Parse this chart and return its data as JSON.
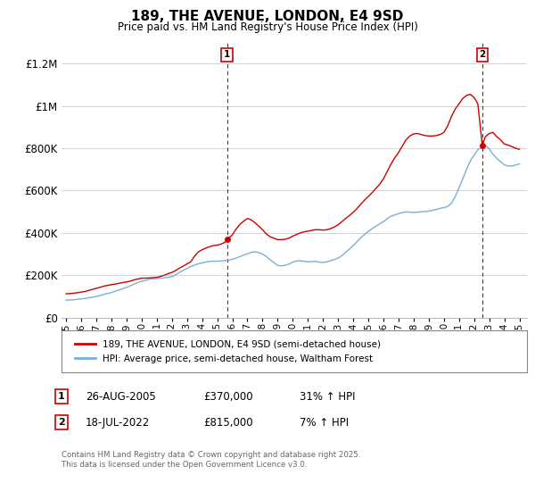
{
  "title": "189, THE AVENUE, LONDON, E4 9SD",
  "subtitle": "Price paid vs. HM Land Registry's House Price Index (HPI)",
  "ylabel_ticks": [
    "£0",
    "£200K",
    "£400K",
    "£600K",
    "£800K",
    "£1M",
    "£1.2M"
  ],
  "ytick_values": [
    0,
    200000,
    400000,
    600000,
    800000,
    1000000,
    1200000
  ],
  "ylim": [
    0,
    1300000
  ],
  "xlim_start": 1994.7,
  "xlim_end": 2025.5,
  "xticks": [
    1995,
    1996,
    1997,
    1998,
    1999,
    2000,
    2001,
    2002,
    2003,
    2004,
    2005,
    2006,
    2007,
    2008,
    2009,
    2010,
    2011,
    2012,
    2013,
    2014,
    2015,
    2016,
    2017,
    2018,
    2019,
    2020,
    2021,
    2022,
    2023,
    2024,
    2025
  ],
  "sale1_x": 2005.65,
  "sale1_y": 370000,
  "sale2_x": 2022.54,
  "sale2_y": 815000,
  "line_color_red": "#cc0000",
  "line_color_blue": "#7ab0d4",
  "vline_color": "#cc0000",
  "background_color": "#ffffff",
  "plot_bg_color": "#ffffff",
  "grid_color": "#cccccc",
  "legend_label_red": "189, THE AVENUE, LONDON, E4 9SD (semi-detached house)",
  "legend_label_blue": "HPI: Average price, semi-detached house, Waltham Forest",
  "note1_label": "1",
  "note1_date": "26-AUG-2005",
  "note1_price": "£370,000",
  "note1_hpi": "31% ↑ HPI",
  "note2_label": "2",
  "note2_date": "18-JUL-2022",
  "note2_price": "£815,000",
  "note2_hpi": "7% ↑ HPI",
  "footer": "Contains HM Land Registry data © Crown copyright and database right 2025.\nThis data is licensed under the Open Government Licence v3.0.",
  "hpi_data_x": [
    1995.0,
    1995.25,
    1995.5,
    1995.75,
    1996.0,
    1996.25,
    1996.5,
    1996.75,
    1997.0,
    1997.25,
    1997.5,
    1997.75,
    1998.0,
    1998.25,
    1998.5,
    1998.75,
    1999.0,
    1999.25,
    1999.5,
    1999.75,
    2000.0,
    2000.25,
    2000.5,
    2000.75,
    2001.0,
    2001.25,
    2001.5,
    2001.75,
    2002.0,
    2002.25,
    2002.5,
    2002.75,
    2003.0,
    2003.25,
    2003.5,
    2003.75,
    2004.0,
    2004.25,
    2004.5,
    2004.75,
    2005.0,
    2005.25,
    2005.5,
    2005.75,
    2006.0,
    2006.25,
    2006.5,
    2006.75,
    2007.0,
    2007.25,
    2007.5,
    2007.75,
    2008.0,
    2008.25,
    2008.5,
    2008.75,
    2009.0,
    2009.25,
    2009.5,
    2009.75,
    2010.0,
    2010.25,
    2010.5,
    2010.75,
    2011.0,
    2011.25,
    2011.5,
    2011.75,
    2012.0,
    2012.25,
    2012.5,
    2012.75,
    2013.0,
    2013.25,
    2013.5,
    2013.75,
    2014.0,
    2014.25,
    2014.5,
    2014.75,
    2015.0,
    2015.25,
    2015.5,
    2015.75,
    2016.0,
    2016.25,
    2016.5,
    2016.75,
    2017.0,
    2017.25,
    2017.5,
    2017.75,
    2018.0,
    2018.25,
    2018.5,
    2018.75,
    2019.0,
    2019.25,
    2019.5,
    2019.75,
    2020.0,
    2020.25,
    2020.5,
    2020.75,
    2021.0,
    2021.25,
    2021.5,
    2021.75,
    2022.0,
    2022.25,
    2022.5,
    2022.75,
    2023.0,
    2023.25,
    2023.5,
    2023.75,
    2024.0,
    2024.25,
    2024.5,
    2024.75,
    2025.0
  ],
  "hpi_data_y": [
    82000,
    83000,
    84000,
    86000,
    88000,
    90000,
    93000,
    96000,
    100000,
    104000,
    109000,
    114000,
    118000,
    124000,
    130000,
    136000,
    142000,
    150000,
    158000,
    165000,
    171000,
    176000,
    180000,
    183000,
    184000,
    186000,
    188000,
    190000,
    193000,
    202000,
    213000,
    223000,
    232000,
    241000,
    248000,
    254000,
    258000,
    262000,
    265000,
    266000,
    266000,
    267000,
    269000,
    271000,
    275000,
    281000,
    288000,
    295000,
    301000,
    308000,
    311000,
    307000,
    300000,
    288000,
    273000,
    260000,
    246000,
    244000,
    247000,
    253000,
    262000,
    267000,
    268000,
    266000,
    263000,
    265000,
    265000,
    262000,
    260000,
    263000,
    268000,
    274000,
    281000,
    292000,
    308000,
    323000,
    340000,
    358000,
    377000,
    392000,
    407000,
    420000,
    432000,
    442000,
    453000,
    467000,
    479000,
    485000,
    491000,
    496000,
    499000,
    498000,
    496000,
    498000,
    500000,
    501000,
    503000,
    507000,
    511000,
    516000,
    519000,
    525000,
    540000,
    572000,
    612000,
    655000,
    700000,
    740000,
    768000,
    793000,
    804000,
    813000,
    797000,
    772000,
    752000,
    737000,
    722000,
    716000,
    716000,
    721000,
    726000
  ],
  "red_line_x": [
    1995.0,
    1995.25,
    1995.5,
    1995.75,
    1996.0,
    1996.25,
    1996.5,
    1996.75,
    1997.0,
    1997.25,
    1997.5,
    1997.75,
    1998.0,
    1998.25,
    1998.5,
    1998.75,
    1999.0,
    1999.25,
    1999.5,
    1999.75,
    2000.0,
    2000.25,
    2000.5,
    2000.75,
    2001.0,
    2001.25,
    2001.5,
    2001.75,
    2002.0,
    2002.25,
    2002.5,
    2002.75,
    2003.0,
    2003.25,
    2003.5,
    2003.75,
    2004.0,
    2004.25,
    2004.5,
    2004.75,
    2005.0,
    2005.25,
    2005.5,
    2005.65,
    2005.75,
    2006.0,
    2006.25,
    2006.5,
    2006.75,
    2007.0,
    2007.25,
    2007.5,
    2007.75,
    2008.0,
    2008.25,
    2008.5,
    2008.75,
    2009.0,
    2009.25,
    2009.5,
    2009.75,
    2010.0,
    2010.25,
    2010.5,
    2010.75,
    2011.0,
    2011.25,
    2011.5,
    2011.75,
    2012.0,
    2012.25,
    2012.5,
    2012.75,
    2013.0,
    2013.25,
    2013.5,
    2013.75,
    2014.0,
    2014.25,
    2014.5,
    2014.75,
    2015.0,
    2015.25,
    2015.5,
    2015.75,
    2016.0,
    2016.25,
    2016.5,
    2016.75,
    2017.0,
    2017.25,
    2017.5,
    2017.75,
    2018.0,
    2018.25,
    2018.5,
    2018.75,
    2019.0,
    2019.25,
    2019.5,
    2019.75,
    2020.0,
    2020.25,
    2020.5,
    2020.75,
    2021.0,
    2021.25,
    2021.5,
    2021.75,
    2022.0,
    2022.25,
    2022.54,
    2022.75,
    2023.0,
    2023.25,
    2023.5,
    2023.75,
    2024.0,
    2024.25,
    2024.5,
    2024.75,
    2025.0
  ],
  "red_line_y": [
    112000,
    113000,
    115000,
    117000,
    120000,
    123000,
    128000,
    133000,
    138000,
    143000,
    148000,
    152000,
    155000,
    158000,
    162000,
    165000,
    168000,
    172000,
    178000,
    182000,
    186000,
    186000,
    187000,
    188000,
    190000,
    194000,
    200000,
    207000,
    213000,
    222000,
    233000,
    243000,
    253000,
    263000,
    290000,
    310000,
    320000,
    328000,
    335000,
    340000,
    342000,
    347000,
    355000,
    370000,
    375000,
    390000,
    418000,
    440000,
    455000,
    468000,
    462000,
    448000,
    432000,
    415000,
    395000,
    382000,
    375000,
    368000,
    368000,
    370000,
    375000,
    385000,
    392000,
    400000,
    405000,
    408000,
    412000,
    415000,
    415000,
    413000,
    415000,
    420000,
    428000,
    438000,
    453000,
    468000,
    482000,
    497000,
    515000,
    535000,
    555000,
    572000,
    590000,
    610000,
    630000,
    655000,
    690000,
    725000,
    755000,
    780000,
    810000,
    840000,
    858000,
    868000,
    870000,
    865000,
    860000,
    858000,
    858000,
    860000,
    865000,
    875000,
    905000,
    950000,
    985000,
    1010000,
    1035000,
    1050000,
    1055000,
    1040000,
    1010000,
    815000,
    855000,
    870000,
    875000,
    855000,
    840000,
    820000,
    815000,
    808000,
    800000,
    795000
  ]
}
